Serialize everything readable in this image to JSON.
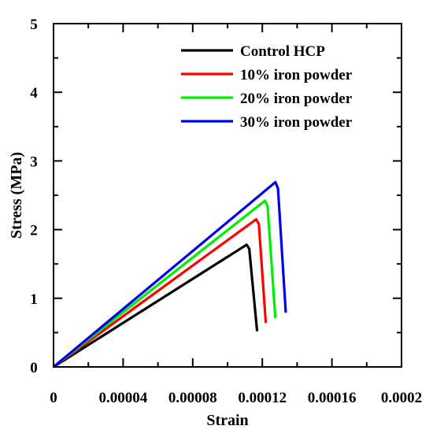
{
  "chart_data": {
    "type": "line",
    "title": "",
    "xlabel": "Strain",
    "ylabel": "Stress (MPa)",
    "xlim": [
      0,
      0.0002
    ],
    "ylim": [
      0,
      5
    ],
    "xticks": [
      0,
      4e-05,
      8e-05,
      0.00012,
      0.00016,
      0.0002
    ],
    "xtick_labels": [
      "0",
      "0.00004",
      "0.00008",
      "0.00012",
      "0.00016",
      "0.0002"
    ],
    "yticks": [
      0,
      1,
      2,
      3,
      4,
      5
    ],
    "ytick_labels": [
      "0",
      "1",
      "2",
      "3",
      "4",
      "5"
    ],
    "grid": false,
    "legend_position": "top-right",
    "series": [
      {
        "name": "Control HCP",
        "color": "#000000",
        "x": [
          0,
          0.000111,
          0.0001125,
          0.000117
        ],
        "y": [
          0,
          1.78,
          1.72,
          0.52
        ]
      },
      {
        "name": "10% iron powder",
        "color": "#ff0000",
        "x": [
          0,
          0.0001165,
          0.000118,
          0.000122
        ],
        "y": [
          0,
          2.15,
          2.08,
          0.64
        ]
      },
      {
        "name": "20% iron powder",
        "color": "#00ee00",
        "x": [
          0,
          0.0001215,
          0.000123,
          0.0001275
        ],
        "y": [
          0,
          2.42,
          2.35,
          0.71
        ]
      },
      {
        "name": "30% iron powder",
        "color": "#0000ee",
        "x": [
          0,
          0.0001275,
          0.000129,
          0.0001335
        ],
        "y": [
          0,
          2.69,
          2.6,
          0.79
        ]
      }
    ]
  }
}
